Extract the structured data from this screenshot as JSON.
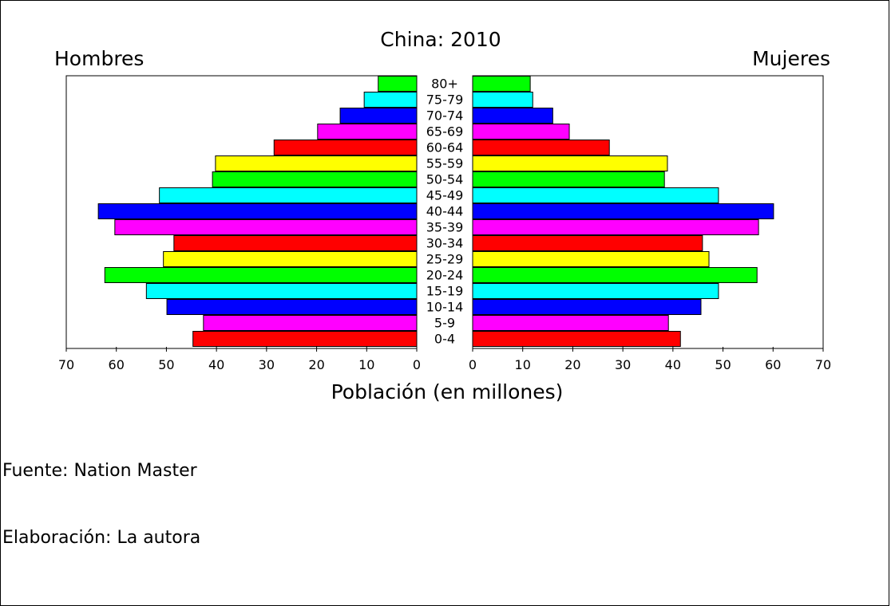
{
  "chart_data": {
    "type": "bar",
    "title": "China: 2010",
    "left_label": "Hombres",
    "right_label": "Mujeres",
    "xlabel": "Población (en millones)",
    "xlim": [
      0,
      70
    ],
    "ticks": [
      "70",
      "60",
      "50",
      "40",
      "30",
      "20",
      "10",
      "0",
      "0",
      "10",
      "20",
      "30",
      "40",
      "50",
      "60",
      "70"
    ],
    "grid": false,
    "categories": [
      "80+",
      "75-79",
      "70-74",
      "65-69",
      "60-64",
      "55-59",
      "50-54",
      "45-49",
      "40-44",
      "35-39",
      "30-34",
      "25-29",
      "20-24",
      "15-19",
      "10-14",
      "5-9",
      "0-4"
    ],
    "series": [
      {
        "name": "Hombres",
        "values": [
          7.7,
          10.5,
          15.3,
          19.8,
          28.5,
          40.2,
          40.8,
          51.4,
          63.6,
          60.3,
          48.5,
          50.6,
          62.3,
          54.0,
          49.9,
          42.6,
          44.7
        ]
      },
      {
        "name": "Mujeres",
        "values": [
          11.5,
          12.0,
          16.0,
          19.3,
          27.3,
          38.9,
          38.3,
          49.1,
          60.1,
          57.1,
          45.9,
          47.2,
          56.8,
          49.1,
          45.6,
          39.1,
          41.5
        ]
      }
    ],
    "colors": [
      "#00ff00",
      "#00ffff",
      "#0000ff",
      "#ff00ff",
      "#ff0000",
      "#ffff00",
      "#00ff00",
      "#00ffff",
      "#0000ff",
      "#ff00ff",
      "#ff0000",
      "#ffff00",
      "#00ff00",
      "#00ffff",
      "#0000ff",
      "#ff00ff",
      "#ff0000"
    ]
  },
  "notes": {
    "source": "Fuente: Nation Master",
    "author": "Elaboración: La autora"
  }
}
